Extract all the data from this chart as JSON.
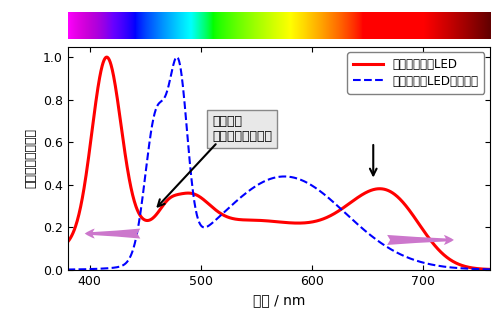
{
  "xlim": [
    380,
    760
  ],
  "ylim": [
    0,
    1.05
  ],
  "xlabel": "波長 / nm",
  "ylabel": "光強度（相対値）",
  "legend1": "開発した標準LED",
  "legend2": "従来の白色LED（一例）",
  "annotation_text": "波長域を\n可視光全域に拡大",
  "red_color": "#ff0000",
  "blue_color": "#0000ff",
  "arrow_color": "#cc77cc",
  "background_color": "#ffffff",
  "xticks": [
    400,
    500,
    600,
    700
  ],
  "yticks": [
    0,
    0.2,
    0.4,
    0.6,
    0.8,
    1.0
  ]
}
